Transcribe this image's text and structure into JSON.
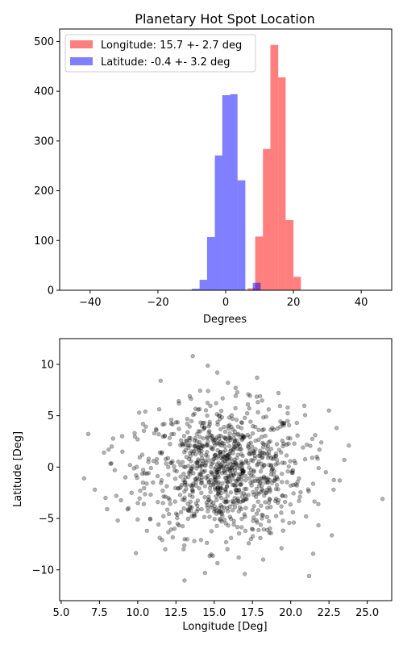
{
  "chart_data": [
    {
      "type": "bar",
      "subtype": "histogram",
      "title": "Planetary Hot Spot Location",
      "xlabel": "Degrees",
      "ylabel": "",
      "xlim": [
        -49,
        49
      ],
      "ylim": [
        0,
        525
      ],
      "xticks": [
        -40,
        -20,
        0,
        20,
        40
      ],
      "yticks": [
        0,
        100,
        200,
        300,
        400,
        500
      ],
      "legend_position": "top-left",
      "grid": false,
      "series": [
        {
          "name": "Longitude: 15.7 +- 2.7 deg",
          "color": "#ff0000",
          "alpha": 0.5,
          "bins": [
            {
              "x0": 4.2,
              "x1": 6.5,
              "value": 0
            },
            {
              "x0": 6.5,
              "x1": 8.7,
              "value": 4
            },
            {
              "x0": 8.7,
              "x1": 11.0,
              "value": 108
            },
            {
              "x0": 11.0,
              "x1": 13.2,
              "value": 284
            },
            {
              "x0": 13.2,
              "x1": 15.5,
              "value": 493
            },
            {
              "x0": 15.5,
              "x1": 17.7,
              "value": 428
            },
            {
              "x0": 17.7,
              "x1": 20.0,
              "value": 141
            },
            {
              "x0": 20.0,
              "x1": 22.2,
              "value": 27
            },
            {
              "x0": 22.2,
              "x1": 24.5,
              "value": 0
            }
          ]
        },
        {
          "name": "Latitude: -0.4 +- 3.2 deg",
          "color": "#0000ff",
          "alpha": 0.5,
          "bins": [
            {
              "x0": -12.3,
              "x1": -10.0,
              "value": 0
            },
            {
              "x0": -10.0,
              "x1": -7.7,
              "value": 3
            },
            {
              "x0": -7.7,
              "x1": -5.5,
              "value": 21
            },
            {
              "x0": -5.5,
              "x1": -3.2,
              "value": 107
            },
            {
              "x0": -3.2,
              "x1": -1.0,
              "value": 271
            },
            {
              "x0": -1.0,
              "x1": 1.3,
              "value": 392
            },
            {
              "x0": 1.3,
              "x1": 3.5,
              "value": 394
            },
            {
              "x0": 3.5,
              "x1": 5.8,
              "value": 221
            },
            {
              "x0": 5.8,
              "x1": 8.0,
              "value": 0
            },
            {
              "x0": 8.0,
              "x1": 10.3,
              "value": 15
            }
          ]
        }
      ]
    },
    {
      "type": "scatter",
      "title": "",
      "xlabel": "Longitude [Deg]",
      "ylabel": "Latitude [Deg]",
      "xlim": [
        4.9,
        26.6
      ],
      "ylim": [
        -13,
        12.5
      ],
      "xticks": [
        "5.0",
        "7.5",
        "10.0",
        "12.5",
        "15.0",
        "17.5",
        "20.0",
        "22.5",
        "25.0"
      ],
      "yticks": [
        "−10",
        "−5",
        "0",
        "5",
        "10"
      ],
      "grid": false,
      "point_color": "#000000",
      "point_alpha": 0.3,
      "n_points": 1000,
      "x_mean": 15.7,
      "x_std": 2.7,
      "y_mean": -0.4,
      "y_std": 3.2,
      "points": [
        [
          6.5,
          -1.1
        ],
        [
          7.2,
          -2.2
        ],
        [
          7.8,
          1.4
        ],
        [
          7.9,
          -3.0
        ],
        [
          8.0,
          -4.1
        ],
        [
          8.1,
          1.7
        ],
        [
          8.3,
          2.0
        ],
        [
          8.5,
          -0.3
        ],
        [
          8.6,
          -2.8
        ],
        [
          8.7,
          -5.2
        ],
        [
          9.0,
          1.5
        ],
        [
          9.2,
          -1.0
        ],
        [
          9.4,
          -4.0
        ],
        [
          9.5,
          0.2
        ],
        [
          9.6,
          -2.5
        ],
        [
          9.8,
          3.3
        ],
        [
          9.9,
          -0.8
        ],
        [
          10.0,
          2.7
        ],
        [
          10.0,
          -5.1
        ],
        [
          10.1,
          5.3
        ],
        [
          10.3,
          1.2
        ],
        [
          10.4,
          -3.6
        ],
        [
          10.5,
          5.4
        ],
        [
          10.7,
          0.5
        ],
        [
          11.0,
          -1.5
        ],
        [
          11.2,
          3.7
        ],
        [
          11.5,
          8.4
        ],
        [
          11.6,
          -7.1
        ],
        [
          11.8,
          -8.0
        ],
        [
          12.0,
          0.0
        ],
        [
          12.2,
          4.6
        ],
        [
          12.4,
          -6.0
        ],
        [
          12.7,
          6.2
        ],
        [
          12.8,
          -2.0
        ],
        [
          13.0,
          -8.0
        ],
        [
          13.2,
          2.5
        ],
        [
          13.4,
          6.9
        ],
        [
          13.6,
          10.8
        ],
        [
          13.7,
          -7.2
        ],
        [
          14.0,
          -1.2
        ],
        [
          14.2,
          4.0
        ],
        [
          14.4,
          -10.3
        ],
        [
          14.6,
          7.4
        ],
        [
          14.8,
          -8.5
        ],
        [
          15.0,
          0.8
        ],
        [
          15.2,
          9.2
        ],
        [
          15.5,
          -5.3
        ],
        [
          15.7,
          2.0
        ],
        [
          15.9,
          8.2
        ],
        [
          16.1,
          -6.9
        ],
        [
          16.2,
          -4.2
        ],
        [
          16.4,
          7.7
        ],
        [
          16.6,
          -8.8
        ],
        [
          16.8,
          3.1
        ],
        [
          17.0,
          -10.4
        ],
        [
          17.2,
          6.1
        ],
        [
          17.4,
          -7.0
        ],
        [
          17.6,
          -2.7
        ],
        [
          17.8,
          8.7
        ],
        [
          18.0,
          1.3
        ],
        [
          18.2,
          -9.0
        ],
        [
          18.4,
          4.9
        ],
        [
          18.6,
          -6.4
        ],
        [
          18.8,
          3.8
        ],
        [
          19.0,
          -3.3
        ],
        [
          19.2,
          7.2
        ],
        [
          19.4,
          -7.9
        ],
        [
          19.6,
          0.4
        ],
        [
          19.8,
          5.8
        ],
        [
          20.0,
          -1.8
        ],
        [
          20.2,
          -5.4
        ],
        [
          20.4,
          4.3
        ],
        [
          20.6,
          -2.9
        ],
        [
          20.8,
          1.9
        ],
        [
          21.0,
          -4.8
        ],
        [
          21.2,
          -10.6
        ],
        [
          21.4,
          0.9
        ],
        [
          21.6,
          3.1
        ],
        [
          21.8,
          -3.6
        ],
        [
          22.0,
          2.4
        ],
        [
          22.3,
          -0.5
        ],
        [
          22.5,
          5.5
        ],
        [
          22.8,
          -2.2
        ],
        [
          23.0,
          3.8
        ],
        [
          23.2,
          -1.3
        ],
        [
          23.5,
          0.7
        ],
        [
          26.0,
          -3.1
        ]
      ]
    }
  ]
}
